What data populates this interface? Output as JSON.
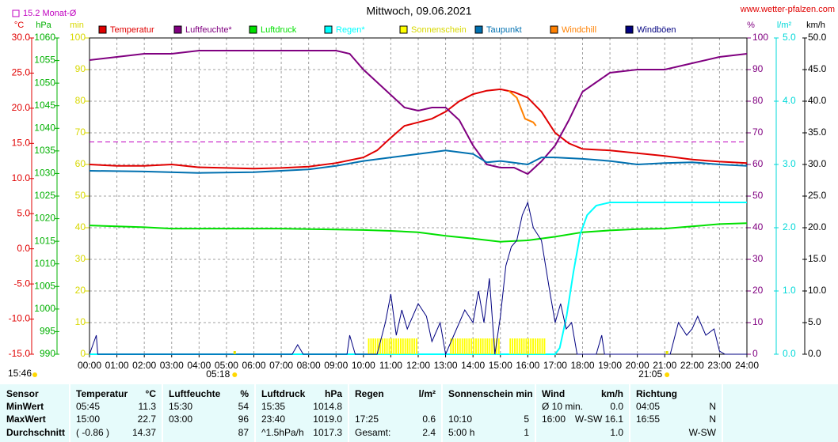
{
  "chart_data": {
    "type": "line",
    "title": "Mittwoch, 09.06.2021",
    "website": "www.wetter-pfalzen.com",
    "timestamp": "15:46",
    "grid": true,
    "grid_axis": "%",
    "xlim": [
      0,
      1440
    ],
    "xticks": [
      {
        "value": 0,
        "label": "00:00"
      },
      {
        "value": 60,
        "label": "01:00"
      },
      {
        "value": 120,
        "label": "02:00"
      },
      {
        "value": 180,
        "label": "03:00"
      },
      {
        "value": 240,
        "label": "04:00"
      },
      {
        "value": 300,
        "label": "05:00"
      },
      {
        "value": 360,
        "label": "06:00"
      },
      {
        "value": 420,
        "label": "07:00"
      },
      {
        "value": 480,
        "label": "08:00"
      },
      {
        "value": 540,
        "label": "09:00"
      },
      {
        "value": 600,
        "label": "10:00"
      },
      {
        "value": 660,
        "label": "11:00"
      },
      {
        "value": 720,
        "label": "12:00"
      },
      {
        "value": 780,
        "label": "13:00"
      },
      {
        "value": 840,
        "label": "14:00"
      },
      {
        "value": 900,
        "label": "15:00"
      },
      {
        "value": 960,
        "label": "16:00"
      },
      {
        "value": 1020,
        "label": "17:00"
      },
      {
        "value": 1080,
        "label": "18:00"
      },
      {
        "value": 1140,
        "label": "19:00"
      },
      {
        "value": 1200,
        "label": "20:00"
      },
      {
        "value": 1260,
        "label": "21:00"
      },
      {
        "value": 1320,
        "label": "22:00"
      },
      {
        "value": 1380,
        "label": "23:00"
      },
      {
        "value": 1440,
        "label": "24:00"
      }
    ],
    "sun_times": [
      {
        "value": 318,
        "label": "05:18"
      },
      {
        "value": 1265,
        "label": "21:05"
      }
    ],
    "monthly_average": {
      "value": 15.2,
      "label": "15.2 Monat-Ø",
      "color": "#c000c0",
      "axis": "°C"
    },
    "axes": [
      {
        "unit": "°C",
        "color": "#e00000",
        "lim": [
          -15,
          30
        ],
        "ticks": [
          {
            "value": 30,
            "label": "30.0"
          },
          {
            "value": 25,
            "label": "25.0"
          },
          {
            "value": 20,
            "label": "20.0"
          },
          {
            "value": 15,
            "label": "15.0"
          },
          {
            "value": 10,
            "label": "10.0"
          },
          {
            "value": 5,
            "label": "5.0"
          },
          {
            "value": 0,
            "label": "0.0"
          },
          {
            "value": -5,
            "label": "-5.0"
          },
          {
            "value": -10,
            "label": "-10.0"
          },
          {
            "value": -15,
            "label": "-15.0"
          }
        ]
      },
      {
        "unit": "hPa",
        "color": "#00b000",
        "lim": [
          990,
          1060
        ],
        "ticks": [
          1060,
          1055,
          1050,
          1045,
          1040,
          1035,
          1030,
          1025,
          1020,
          1015,
          1010,
          1005,
          1000,
          995,
          990
        ]
      },
      {
        "unit": "min",
        "color": "#d8d800",
        "lim": [
          0,
          100
        ],
        "ticks": [
          100,
          90,
          80,
          70,
          60,
          50,
          40,
          30,
          20,
          10,
          0
        ]
      },
      {
        "unit": "%",
        "color": "#800080",
        "lim": [
          0,
          100
        ],
        "ticks": [
          100,
          90,
          80,
          70,
          60,
          50,
          40,
          30,
          20,
          10,
          0
        ]
      },
      {
        "unit": "l/m²",
        "color": "#00d8d8",
        "lim": [
          0,
          5
        ],
        "ticks": [
          {
            "value": 5,
            "label": "5.0"
          },
          {
            "value": 4,
            "label": "4.0"
          },
          {
            "value": 3,
            "label": "3.0"
          },
          {
            "value": 2,
            "label": "2.0"
          },
          {
            "value": 1,
            "label": "1.0"
          },
          {
            "value": 0,
            "label": "0.0"
          }
        ]
      },
      {
        "unit": "km/h",
        "color": "#000000",
        "lim": [
          0,
          50
        ],
        "ticks": [
          {
            "value": 50,
            "label": "50.0"
          },
          {
            "value": 45,
            "label": "45.0"
          },
          {
            "value": 40,
            "label": "40.0"
          },
          {
            "value": 35,
            "label": "35.0"
          },
          {
            "value": 30,
            "label": "30.0"
          },
          {
            "value": 25,
            "label": "25.0"
          },
          {
            "value": 20,
            "label": "20.0"
          },
          {
            "value": 15,
            "label": "15.0"
          },
          {
            "value": 10,
            "label": "10.0"
          },
          {
            "value": 5,
            "label": "5.0"
          },
          {
            "value": 0,
            "label": "0.0"
          }
        ]
      }
    ],
    "series": [
      {
        "name": "Temperatur",
        "color": "#e00000",
        "axis": "°C",
        "x": [
          0,
          60,
          120,
          180,
          240,
          300,
          360,
          420,
          480,
          540,
          600,
          630,
          660,
          690,
          720,
          750,
          780,
          810,
          840,
          870,
          900,
          930,
          960,
          990,
          1020,
          1050,
          1080,
          1140,
          1200,
          1260,
          1320,
          1380,
          1440
        ],
        "values": [
          12.0,
          11.8,
          11.8,
          12.0,
          11.6,
          11.5,
          11.4,
          11.5,
          11.7,
          12.2,
          13.0,
          14.0,
          15.8,
          17.5,
          18.0,
          18.5,
          19.5,
          21.0,
          22.0,
          22.5,
          22.7,
          22.3,
          21.5,
          19.5,
          16.5,
          15.0,
          14.2,
          14.0,
          13.6,
          13.2,
          12.7,
          12.4,
          12.2
        ]
      },
      {
        "name": "Luftfeuchte*",
        "color": "#800080",
        "axis": "%",
        "x": [
          0,
          60,
          120,
          180,
          240,
          300,
          360,
          420,
          480,
          540,
          570,
          600,
          630,
          660,
          690,
          720,
          750,
          780,
          810,
          840,
          870,
          900,
          930,
          960,
          990,
          1020,
          1050,
          1080,
          1110,
          1140,
          1200,
          1260,
          1320,
          1380,
          1440
        ],
        "values": [
          93,
          94,
          95,
          95,
          96,
          96,
          96,
          96,
          96,
          96,
          95,
          90,
          86,
          82,
          78,
          77,
          78,
          78,
          74,
          66,
          60,
          59,
          59,
          57,
          61,
          66,
          74,
          83,
          86,
          89,
          90,
          90,
          92,
          94,
          95
        ]
      },
      {
        "name": "Luftdruck",
        "color": "#00e000",
        "axis": "hPa",
        "x": [
          0,
          60,
          120,
          180,
          240,
          300,
          360,
          420,
          480,
          540,
          600,
          660,
          720,
          780,
          840,
          900,
          960,
          1020,
          1080,
          1140,
          1200,
          1260,
          1320,
          1380,
          1440
        ],
        "values": [
          1018.5,
          1018.3,
          1018.1,
          1017.8,
          1017.8,
          1017.8,
          1017.8,
          1017.8,
          1017.7,
          1017.6,
          1017.5,
          1017.3,
          1017.0,
          1016.2,
          1015.6,
          1014.9,
          1015.2,
          1016.0,
          1017.0,
          1017.4,
          1017.7,
          1017.8,
          1018.3,
          1018.8,
          1019.0
        ]
      },
      {
        "name": "Regen*",
        "color": "#00ffff",
        "axis": "l/m²",
        "x": [
          0,
          1020,
          1030,
          1045,
          1060,
          1075,
          1090,
          1110,
          1140,
          1440
        ],
        "values": [
          0,
          0,
          0.1,
          0.6,
          1.3,
          1.9,
          2.2,
          2.35,
          2.4,
          2.4
        ]
      },
      {
        "name": "Sonnenschein",
        "color": "#ffff00",
        "axis": "min",
        "type": "bar",
        "x": [
          610,
          615,
          620,
          625,
          630,
          635,
          640,
          645,
          650,
          655,
          660,
          665,
          670,
          675,
          680,
          685,
          690,
          695,
          700,
          705,
          710,
          715,
          790,
          795,
          800,
          805,
          810,
          815,
          820,
          825,
          830,
          835,
          840,
          845,
          850,
          855,
          860,
          865,
          870,
          875,
          880,
          885,
          890,
          895,
          920,
          925,
          930,
          935,
          940,
          945,
          950,
          955,
          960,
          965,
          970,
          975,
          980,
          985,
          990,
          995
        ],
        "values": [
          5,
          5,
          5,
          5,
          5,
          5,
          5,
          5,
          5,
          5,
          5,
          5,
          5,
          5,
          5,
          5,
          5,
          5,
          5,
          5,
          5,
          5,
          5,
          5,
          5,
          5,
          5,
          5,
          5,
          5,
          5,
          5,
          5,
          5,
          5,
          5,
          5,
          5,
          5,
          5,
          5,
          5,
          5,
          5,
          5,
          5,
          5,
          5,
          5,
          5,
          5,
          5,
          5,
          5,
          5,
          5,
          5,
          5,
          5,
          5
        ]
      },
      {
        "name": "Taupunkt",
        "color": "#0070b0",
        "axis": "°C",
        "x": [
          0,
          120,
          240,
          360,
          480,
          540,
          600,
          660,
          720,
          780,
          840,
          870,
          900,
          960,
          990,
          1020,
          1080,
          1140,
          1200,
          1260,
          1320,
          1380,
          1440
        ],
        "values": [
          11.1,
          11.0,
          10.8,
          10.9,
          11.3,
          11.8,
          12.5,
          13.0,
          13.5,
          14.0,
          13.5,
          12.3,
          12.5,
          12.0,
          13.0,
          13.0,
          12.8,
          12.5,
          12.0,
          12.2,
          12.3,
          12.0,
          11.8
        ]
      },
      {
        "name": "Windchill",
        "color": "#ff8000",
        "axis": "°C",
        "x": [
          918,
          936,
          954,
          972,
          978
        ],
        "values": [
          22.5,
          21.5,
          18.5,
          18.0,
          17.5
        ]
      },
      {
        "name": "Windböen",
        "color": "#000080",
        "axis": "km/h",
        "x": [
          0,
          15,
          18,
          444,
          456,
          468,
          564,
          570,
          582,
          630,
          648,
          660,
          672,
          684,
          696,
          720,
          738,
          750,
          768,
          780,
          810,
          822,
          840,
          852,
          864,
          876,
          888,
          900,
          912,
          924,
          936,
          948,
          960,
          972,
          990,
          1008,
          1020,
          1032,
          1044,
          1056,
          1068,
          1110,
          1122,
          1128,
          1272,
          1290,
          1308,
          1320,
          1332,
          1350,
          1368,
          1380,
          1392,
          1440
        ],
        "values": [
          0,
          3,
          0,
          0,
          1.5,
          0,
          0,
          3,
          0,
          0,
          5,
          9.5,
          3,
          7,
          4,
          8,
          6,
          2,
          5,
          0,
          5,
          7,
          5,
          10,
          5,
          12,
          0,
          6,
          14,
          17,
          18,
          22,
          24,
          20,
          18,
          10,
          5,
          8,
          4,
          5,
          0,
          0,
          3,
          0,
          0,
          5,
          3,
          4,
          6,
          3,
          4,
          0.5,
          0,
          0
        ]
      }
    ]
  },
  "table": {
    "sensor": "Sensor",
    "columns": [
      {
        "title": "Temperatur",
        "unit": "°C"
      },
      {
        "title": "Luftfeuchte",
        "unit": "%"
      },
      {
        "title": "Luftdruck",
        "unit": "hPa"
      },
      {
        "title": "Regen",
        "unit": "l/m²"
      },
      {
        "title": "Sonnenschein min",
        "unit": null
      },
      {
        "title": "Wind",
        "unit": "km/h"
      },
      {
        "title": "Richtung",
        "unit": null
      }
    ],
    "rows": [
      {
        "label": "MinWert",
        "cells": [
          [
            "05:45",
            "11.3"
          ],
          [
            "15:30",
            "54"
          ],
          [
            "15:35",
            "1014.8"
          ],
          [
            null,
            null
          ],
          [
            null,
            null
          ],
          [
            "Ø 10 min.",
            "0.0"
          ],
          [
            "04:05",
            "N"
          ]
        ]
      },
      {
        "label": "MaxWert",
        "cells": [
          [
            "15:00",
            "22.7"
          ],
          [
            "03:00",
            "96"
          ],
          [
            "23:40",
            "1019.0"
          ],
          [
            "17:25",
            "0.6"
          ],
          [
            "10:10",
            "5"
          ],
          [
            "16:00",
            "W-SW 16.1"
          ],
          [
            "16:55",
            "N"
          ]
        ]
      },
      {
        "label": "Durchschnitt",
        "cells": [
          [
            "( -0.86 )",
            "14.37"
          ],
          [
            null,
            "87"
          ],
          [
            "^1.5hPa/h",
            "1017.3"
          ],
          [
            "Gesamt:",
            "2.4"
          ],
          [
            "5:00 h",
            "1"
          ],
          [
            null,
            "1.0"
          ],
          [
            null,
            "W-SW"
          ]
        ]
      }
    ]
  }
}
